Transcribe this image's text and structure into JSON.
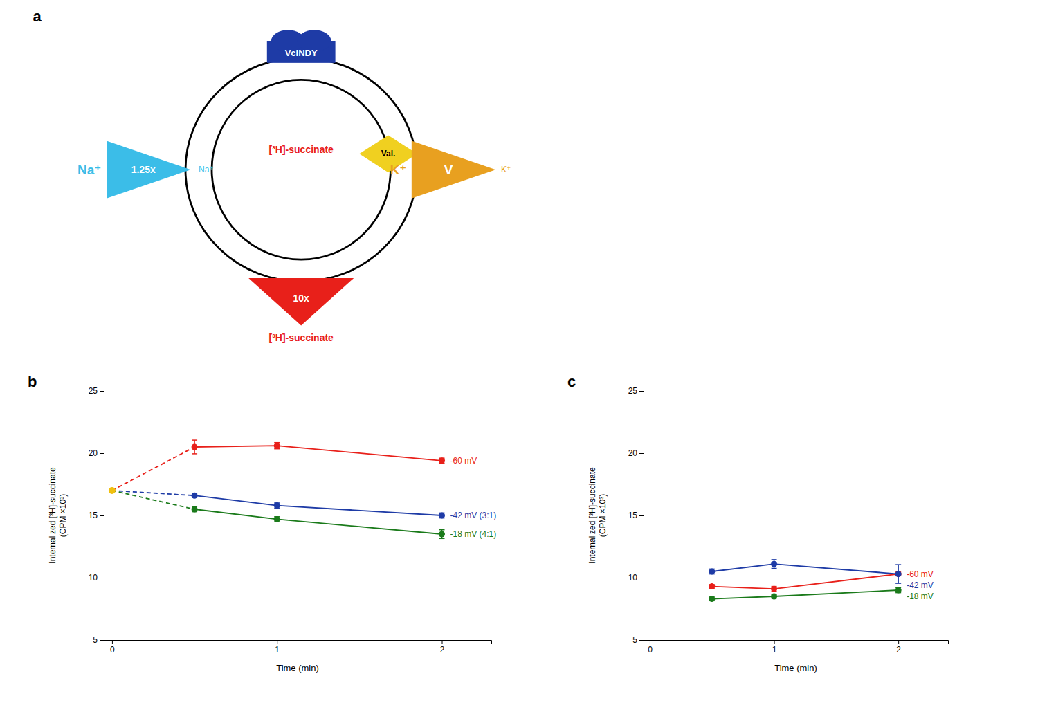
{
  "chart_data": [
    {
      "type": "diagram",
      "title": "a",
      "annotations": [
        {
          "text": "VcINDY",
          "color": "#1e3ba6"
        },
        {
          "text": "Val.",
          "color": "#f0d020"
        },
        {
          "text": "1.25x",
          "color": "#3bbde8"
        },
        {
          "text": "Na⁺",
          "color": "#3bbde8"
        },
        {
          "text": "Na⁺",
          "color": "#3bbde8"
        },
        {
          "text": "V",
          "color": "#e8a020"
        },
        {
          "text": "K⁺",
          "color": "#e8a020"
        },
        {
          "text": "K⁺",
          "color": "#e8a020"
        },
        {
          "text": "10x",
          "color": "#e8201a"
        },
        {
          "text": "[³H]-succinate",
          "color": "#e8201a"
        },
        {
          "text": "[³H]-succinate",
          "color": "#e8201a"
        }
      ]
    },
    {
      "type": "line",
      "title": "b",
      "xlabel": "Time (min)",
      "ylabel": "Internalized [³H]-succinate\n(CPM ×10³)",
      "x": [
        0.5,
        1.0,
        2.0
      ],
      "xlim": [
        -0.05,
        2.3
      ],
      "xticks": [
        0,
        1,
        2
      ],
      "ylim": [
        5,
        25
      ],
      "yticks": [
        5,
        10,
        15,
        20,
        25
      ],
      "marker": "circle",
      "start_x": 0.0,
      "start_y": 17.0,
      "start_color": "#f0c010",
      "series": [
        {
          "name": "-60 mV",
          "color": "#e8201a",
          "values": [
            20.5,
            20.6,
            19.4
          ],
          "errors": [
            0.55,
            0.25,
            0.2
          ]
        },
        {
          "name": "-42 mV (3:1)",
          "color": "#1e3ba6",
          "values": [
            16.6,
            15.8,
            15.0
          ],
          "errors": [
            0.15,
            0.2,
            0.2
          ]
        },
        {
          "name": "-18 mV (4:1)",
          "color": "#1a7a1a",
          "values": [
            15.5,
            14.7,
            13.5
          ],
          "errors": [
            0.2,
            0.2,
            0.35
          ]
        }
      ]
    },
    {
      "type": "line",
      "title": "c",
      "xlabel": "Time (min)",
      "ylabel": "Internalized [³H]-succinate\n(CPM ×10³)",
      "x": [
        0.5,
        1.0,
        2.0
      ],
      "xlim": [
        -0.05,
        2.4
      ],
      "xticks": [
        0,
        1,
        2
      ],
      "ylim": [
        5,
        25
      ],
      "yticks": [
        5,
        10,
        15,
        20,
        25
      ],
      "marker": "circle",
      "series": [
        {
          "name": "-60 mV",
          "color": "#e8201a",
          "values": [
            9.3,
            9.1,
            10.3
          ],
          "errors": [
            0.15,
            0.2,
            0.15
          ]
        },
        {
          "name": "-42 mV",
          "color": "#1e3ba6",
          "values": [
            10.5,
            11.1,
            10.3
          ],
          "errors": [
            0.2,
            0.35,
            0.75
          ]
        },
        {
          "name": "-18 mV",
          "color": "#1a7a1a",
          "values": [
            8.3,
            8.5,
            9.0
          ],
          "errors": [
            0.15,
            0.15,
            0.2
          ]
        }
      ]
    }
  ]
}
